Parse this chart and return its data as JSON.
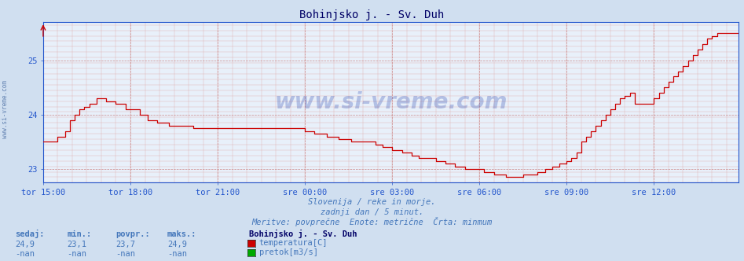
{
  "title": "Bohinjsko j. - Sv. Duh",
  "background_color": "#d0dff0",
  "plot_bg_color": "#e8f0fa",
  "line_color": "#cc0000",
  "axis_color": "#2255cc",
  "text_color": "#4477bb",
  "title_color": "#000066",
  "ylim_min": 22.75,
  "ylim_max": 25.7,
  "yticks": [
    23,
    24,
    25
  ],
  "subtitle_lines": [
    "Slovenija / reke in morje.",
    "zadnji dan / 5 minut.",
    "Meritve: povprečne  Enote: metrične  Črta: minmum"
  ],
  "legend_station": "Bohinjsko j. - Sv. Duh",
  "legend_items": [
    {
      "label": "temperatura[C]",
      "color": "#cc0000"
    },
    {
      "label": "pretok[m3/s]",
      "color": "#00aa00"
    }
  ],
  "stats_headers": [
    "sedaj:",
    "min.:",
    "povpr.:",
    "maks.:"
  ],
  "stats_row1": [
    "24,9",
    "23,1",
    "23,7",
    "24,9"
  ],
  "stats_row2": [
    "-nan",
    "-nan",
    "-nan",
    "-nan"
  ],
  "x_tick_labels": [
    "tor 15:00",
    "tor 18:00",
    "tor 21:00",
    "sre 00:00",
    "sre 03:00",
    "sre 06:00",
    "sre 09:00",
    "sre 12:00"
  ],
  "x_tick_positions": [
    0,
    36,
    72,
    108,
    144,
    180,
    216,
    252
  ],
  "total_points": 288,
  "watermark": "www.si-vreme.com"
}
